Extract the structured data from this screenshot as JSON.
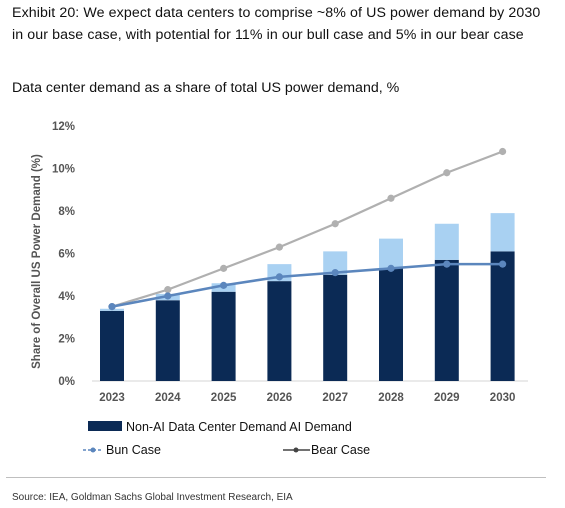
{
  "header": {
    "title": "Exhibit 20: We expect data centers to comprise ~8% of US power demand by 2030 in our base case, with potential for 11% in our bull case and 5% in our bear case",
    "subtitle": "Data center demand as a share of total US power demand, %"
  },
  "footer": {
    "source": "Source: IEA, Goldman Sachs Global Investment Research, EIA"
  },
  "colors": {
    "non_ai": "#0b2a55",
    "ai": "#a9d1f2",
    "bull_line": "#b0b0b0",
    "bear_line": "#5b86bd"
  },
  "chart_data": {
    "type": "bar",
    "ylabel": "Share of Overall US Power Demand (%)",
    "ylim": [
      0,
      12
    ],
    "yticks": [
      "0%",
      "2%",
      "4%",
      "6%",
      "8%",
      "10%",
      "12%"
    ],
    "categories": [
      "2023",
      "2024",
      "2025",
      "2026",
      "2027",
      "2028",
      "2029",
      "2030"
    ],
    "series": [
      {
        "name": "Non-AI Data Center Demand",
        "kind": "bar-stacked",
        "values": [
          3.3,
          3.8,
          4.2,
          4.7,
          5.0,
          5.3,
          5.7,
          6.1
        ]
      },
      {
        "name": "AI Demand",
        "kind": "bar-stacked",
        "values": [
          0.1,
          0.3,
          0.4,
          0.8,
          1.1,
          1.4,
          1.7,
          1.8
        ]
      },
      {
        "name": "Bun Case",
        "kind": "line",
        "values": [
          3.5,
          4.3,
          5.3,
          6.3,
          7.4,
          8.6,
          9.8,
          10.8
        ]
      },
      {
        "name": "Bear Case",
        "kind": "line",
        "values": [
          3.5,
          4.0,
          4.5,
          4.9,
          5.1,
          5.3,
          5.5,
          5.5
        ]
      }
    ],
    "legend": {
      "row1": "Non-AI Data Center Demand AI Demand",
      "bull": "Bun Case",
      "bear": "Bear Case"
    },
    "grid": false,
    "legend_position": "bottom-left"
  }
}
